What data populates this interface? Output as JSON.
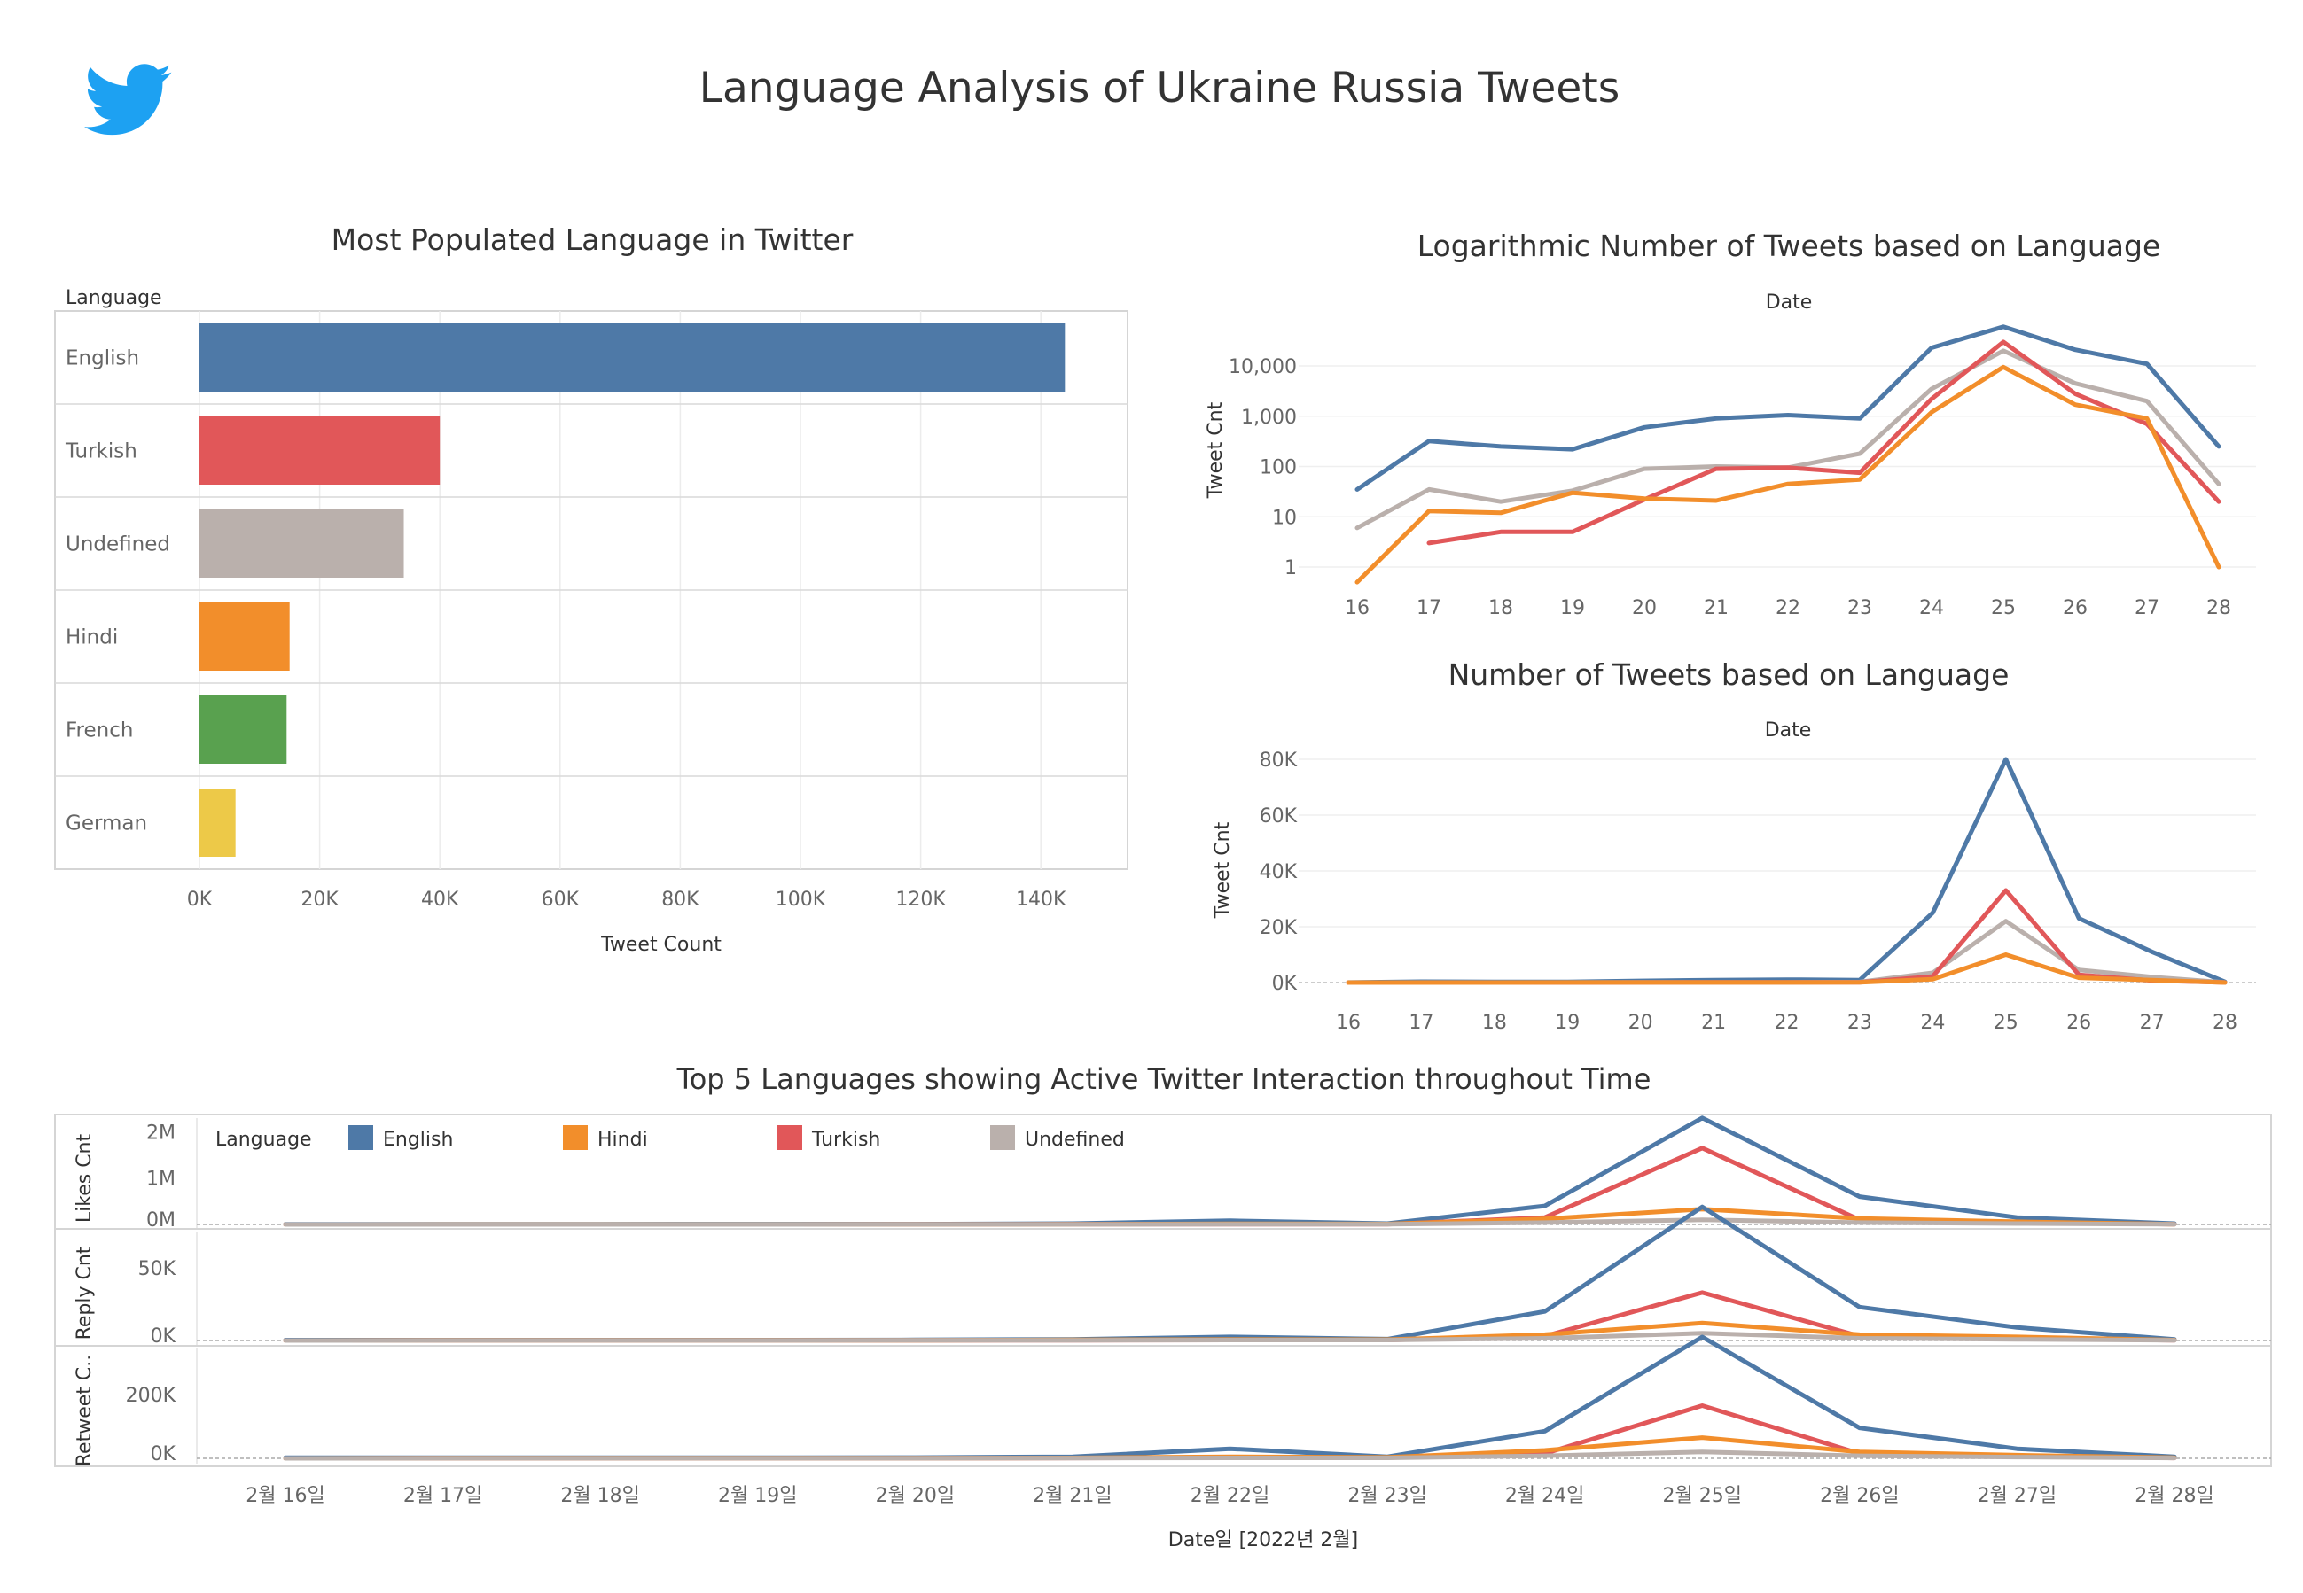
{
  "dashboard": {
    "title": "Language Analysis of Ukraine Russia Tweets",
    "logo_icon": "twitter-bird-icon",
    "brand_color": "#1DA1F2"
  },
  "colors": {
    "English": "#4E79A7",
    "Turkish": "#E15759",
    "Undefined": "#BAB0AC",
    "Hindi": "#F28E2B",
    "French": "#59A14F",
    "German": "#EDC948"
  },
  "chart_data": [
    {
      "id": "bar",
      "type": "bar",
      "orientation": "horizontal",
      "title": "Most Populated Language in Twitter",
      "category_header": "Language",
      "xlabel": "Tweet Count",
      "categories": [
        "English",
        "Turkish",
        "Undefined",
        "Hindi",
        "French",
        "German"
      ],
      "values": [
        144000,
        40000,
        34000,
        15000,
        14500,
        6000
      ],
      "xlim": [
        0,
        150000
      ],
      "xticks": [
        0,
        20000,
        40000,
        60000,
        80000,
        100000,
        120000,
        140000
      ],
      "xtick_labels": [
        "0K",
        "20K",
        "40K",
        "60K",
        "80K",
        "100K",
        "120K",
        "140K"
      ]
    },
    {
      "id": "log",
      "type": "line",
      "title": "Logarithmic Number of Tweets based on Language",
      "xlabel": "Date",
      "ylabel": "Tweet Cnt",
      "yscale": "log",
      "x": [
        16,
        17,
        18,
        19,
        20,
        21,
        22,
        23,
        24,
        25,
        26,
        27,
        28
      ],
      "yticks": [
        1,
        10,
        100,
        1000,
        10000
      ],
      "ytick_labels": [
        "1",
        "10",
        "100",
        "1,000",
        "10,000"
      ],
      "series": [
        {
          "name": "English",
          "values": [
            35,
            320,
            250,
            220,
            600,
            900,
            1050,
            900,
            23000,
            60000,
            21000,
            11000,
            250
          ]
        },
        {
          "name": "Undefined",
          "values": [
            6,
            35,
            20,
            33,
            90,
            100,
            95,
            180,
            3500,
            20000,
            4500,
            2000,
            45
          ]
        },
        {
          "name": "Turkish",
          "values": [
            null,
            3,
            5,
            5,
            22,
            90,
            95,
            75,
            2200,
            30000,
            2800,
            700,
            20
          ]
        },
        {
          "name": "Hindi",
          "values": [
            0.5,
            13,
            12,
            30,
            23,
            21,
            45,
            55,
            1200,
            9500,
            1700,
            900,
            1
          ]
        }
      ]
    },
    {
      "id": "lin",
      "type": "line",
      "title": "Number of Tweets based on Language",
      "xlabel": "Date",
      "ylabel": "Tweet Cnt",
      "x": [
        16,
        17,
        18,
        19,
        20,
        21,
        22,
        23,
        24,
        25,
        26,
        27,
        28
      ],
      "ylim": [
        0,
        80000
      ],
      "yticks": [
        0,
        20000,
        40000,
        60000,
        80000
      ],
      "ytick_labels": [
        "0K",
        "20K",
        "40K",
        "60K",
        "80K"
      ],
      "series": [
        {
          "name": "English",
          "values": [
            35,
            320,
            250,
            220,
            600,
            900,
            1050,
            900,
            25000,
            80000,
            23000,
            11000,
            250
          ]
        },
        {
          "name": "Undefined",
          "values": [
            6,
            35,
            20,
            33,
            90,
            100,
            95,
            180,
            3500,
            22000,
            4500,
            2000,
            45
          ]
        },
        {
          "name": "Turkish",
          "values": [
            0,
            3,
            5,
            5,
            22,
            90,
            95,
            75,
            2200,
            33000,
            2800,
            700,
            20
          ]
        },
        {
          "name": "Hindi",
          "values": [
            0.5,
            13,
            12,
            30,
            23,
            21,
            45,
            55,
            1200,
            10000,
            1700,
            900,
            1
          ]
        }
      ]
    },
    {
      "id": "top5",
      "type": "line",
      "title": "Top 5 Languages showing Active Twitter Interaction throughout Time",
      "xlabel": "Date일 [2022년 2월]",
      "legend_title": "Language",
      "legend": [
        "English",
        "Hindi",
        "Turkish",
        "Undefined"
      ],
      "x": [
        "2월 16일",
        "2월 17일",
        "2월 18일",
        "2월 19일",
        "2월 20일",
        "2월 21일",
        "2월 22일",
        "2월 23일",
        "2월 24일",
        "2월 25일",
        "2월 26일",
        "2월 27일",
        "2월 28일"
      ],
      "panels": [
        {
          "ylabel": "Likes Cnt",
          "ylim": [
            0,
            2200000
          ],
          "yticks": [
            0,
            1000000,
            2000000
          ],
          "ytick_labels": [
            "0M",
            "1M",
            "2M"
          ],
          "series": [
            {
              "name": "English",
              "values": [
                5000,
                6000,
                6000,
                7000,
                8000,
                20000,
                80000,
                20000,
                400000,
                2300000,
                600000,
                150000,
                20000
              ]
            },
            {
              "name": "Turkish",
              "values": [
                0,
                500,
                600,
                700,
                1000,
                3000,
                5000,
                5000,
                150000,
                1650000,
                100000,
                40000,
                5000
              ]
            },
            {
              "name": "Hindi",
              "values": [
                0,
                1000,
                1000,
                1500,
                2000,
                4000,
                15000,
                10000,
                120000,
                330000,
                130000,
                60000,
                5000
              ]
            },
            {
              "name": "Undefined",
              "values": [
                0,
                500,
                500,
                800,
                1000,
                2000,
                4000,
                4000,
                40000,
                100000,
                40000,
                20000,
                3000
              ]
            }
          ]
        },
        {
          "ylabel": "Reply Cnt",
          "ylim": [
            0,
            72000
          ],
          "yticks": [
            0,
            50000
          ],
          "ytick_labels": [
            "0K",
            "50K"
          ],
          "series": [
            {
              "name": "English",
              "values": [
                300,
                300,
                300,
                300,
                400,
                800,
                2500,
                1000,
                20000,
                92000,
                23000,
                9000,
                800
              ]
            },
            {
              "name": "Turkish",
              "values": [
                0,
                50,
                50,
                60,
                80,
                200,
                300,
                300,
                3000,
                33000,
                3000,
                1500,
                200
              ]
            },
            {
              "name": "Hindi",
              "values": [
                0,
                100,
                100,
                150,
                200,
                400,
                700,
                600,
                4000,
                12000,
                4000,
                2500,
                300
              ]
            },
            {
              "name": "Undefined",
              "values": [
                0,
                50,
                50,
                80,
                100,
                200,
                300,
                300,
                1500,
                5000,
                1500,
                800,
                100
              ]
            }
          ]
        },
        {
          "ylabel": "Retweet C..",
          "ylim": [
            0,
            330000
          ],
          "yticks": [
            0,
            200000
          ],
          "ytick_labels": [
            "0K",
            "200K"
          ],
          "series": [
            {
              "name": "English",
              "values": [
                2000,
                2000,
                2000,
                2000,
                2500,
                5000,
                30000,
                5000,
                85000,
                380000,
                95000,
                30000,
                5000
              ]
            },
            {
              "name": "Turkish",
              "values": [
                0,
                200,
                200,
                300,
                400,
                1000,
                2000,
                2000,
                15000,
                165000,
                15000,
                8000,
                1000
              ]
            },
            {
              "name": "Hindi",
              "values": [
                0,
                500,
                500,
                600,
                800,
                1500,
                5000,
                3000,
                25000,
                65000,
                20000,
                10000,
                2000
              ]
            },
            {
              "name": "Undefined",
              "values": [
                0,
                200,
                200,
                300,
                400,
                800,
                1500,
                1500,
                8000,
                20000,
                8000,
                4000,
                1000
              ]
            }
          ]
        }
      ]
    }
  ]
}
